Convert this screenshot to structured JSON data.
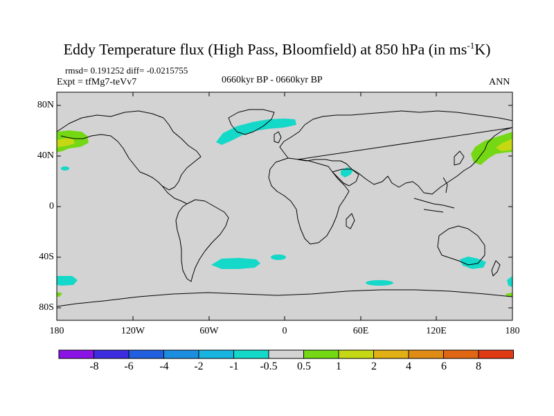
{
  "title": {
    "main": "Eddy Temperature flux (High Pass, Bloomfield) at 850 hPa (in ms",
    "superscript": "-1",
    "end": "K)"
  },
  "stats_line": "rmsd= 0.191252 diff= -0.0215755",
  "experiment_label": "Expt = tfMg7-teVv7",
  "period_label": "0660kyr BP - 0660kyr BP",
  "season_label": "ANN",
  "map": {
    "projection": "cylindrical-equidistant",
    "lon_range": [
      -180,
      180
    ],
    "lat_range": [
      -90,
      90
    ],
    "y_ticks": [
      "80N",
      "40N",
      "0",
      "40S",
      "80S"
    ],
    "x_ticks": [
      "180",
      "120W",
      "60W",
      "0",
      "60E",
      "120E",
      "180"
    ],
    "land_color": "#d3d3d3",
    "coastline_color": "#000000"
  },
  "colorbar": {
    "labels": [
      "-8",
      "-6",
      "-4",
      "-2",
      "-1",
      "-0.5",
      "0.5",
      "1",
      "2",
      "4",
      "6",
      "8"
    ],
    "colors": [
      "#8a14e6",
      "#3c2ee0",
      "#1f5fe0",
      "#1c8ee0",
      "#18b4e0",
      "#14d8c8",
      "#d3d3d3",
      "#74d814",
      "#c6d814",
      "#e0b014",
      "#e08c14",
      "#e06614",
      "#e03a14"
    ]
  },
  "features": [
    {
      "name": "n-atlantic-anomaly",
      "value": -1.0
    },
    {
      "name": "n-pacific-west-anomaly",
      "value": 1.5
    },
    {
      "name": "n-pacific-east-anomaly",
      "value": 1.5
    },
    {
      "name": "s-atlantic-anomaly",
      "value": -1.0
    },
    {
      "name": "s-indian-anomaly",
      "value": -1.0
    },
    {
      "name": "s-pacific-anomaly",
      "value": -1.0
    }
  ]
}
